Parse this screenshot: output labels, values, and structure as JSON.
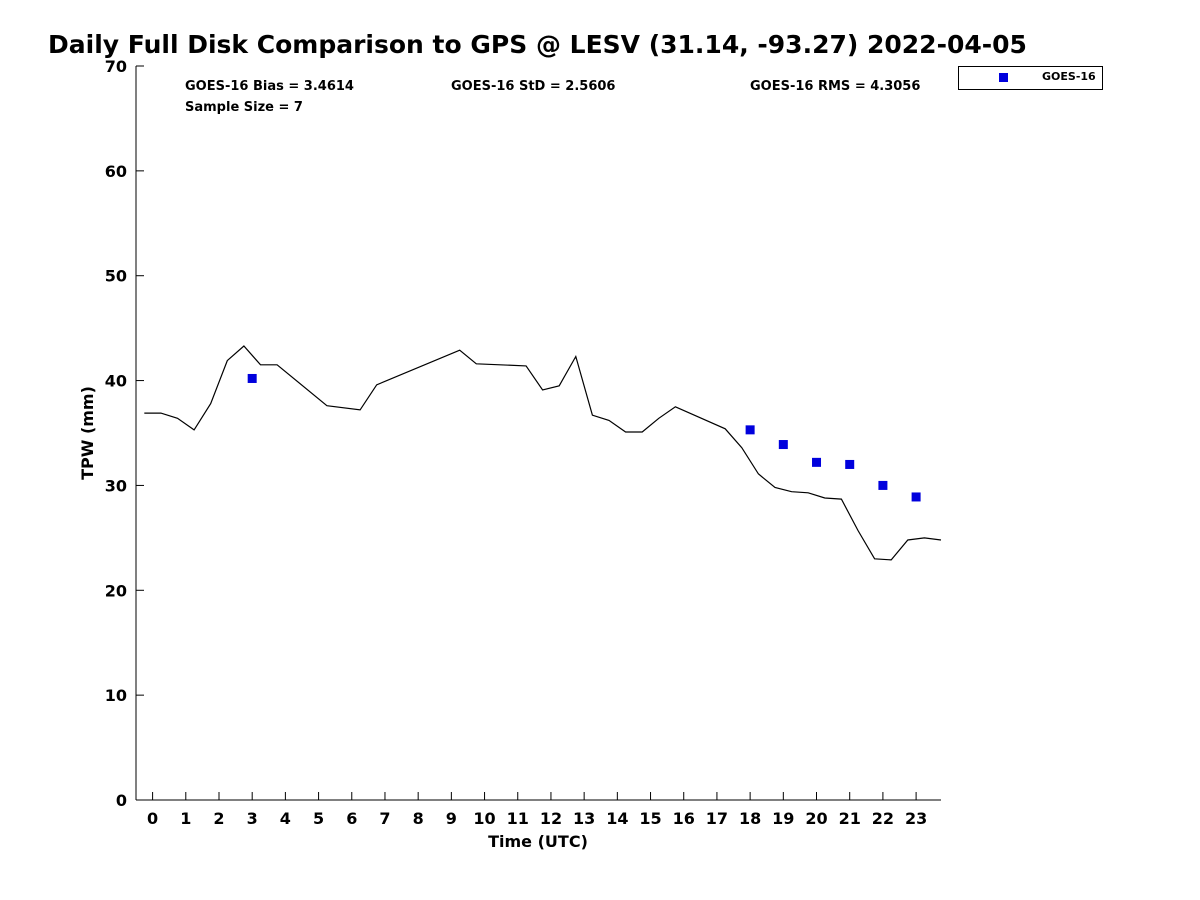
{
  "chart_data": {
    "type": "scatter",
    "title": "Daily Full Disk Comparison to GPS @ LESV (31.14, -93.27) 2022-04-05",
    "xlabel": "Time (UTC)",
    "ylabel": "TPW (mm)",
    "xlim": [
      -0.5,
      23.75
    ],
    "ylim": [
      0,
      70
    ],
    "x_ticks": [
      "0",
      "1",
      "2",
      "3",
      "4",
      "5",
      "6",
      "7",
      "8",
      "9",
      "10",
      "11",
      "12",
      "13",
      "14",
      "15",
      "16",
      "17",
      "18",
      "19",
      "20",
      "21",
      "22",
      "23"
    ],
    "y_ticks": [
      "0",
      "10",
      "20",
      "30",
      "40",
      "50",
      "60",
      "70"
    ],
    "grid": false,
    "legend_position": "top-right",
    "stats": [
      "GOES-16 Bias = 3.4614",
      "GOES-16 StD = 2.5606",
      "GOES-16 RMS = 4.3056",
      "Sample Size = 7"
    ],
    "series": [
      {
        "name": "GOES-16",
        "marker": "square",
        "color": "#0000dd",
        "x": [
          3,
          18,
          19,
          20,
          21,
          22,
          23
        ],
        "y": [
          40.2,
          35.3,
          33.9,
          32.2,
          32.0,
          30.0,
          28.9
        ]
      },
      {
        "line_color": "#000000",
        "x": [
          -0.25,
          0.25,
          0.75,
          1.25,
          1.75,
          2.25,
          2.75,
          3.25,
          3.75,
          5.25,
          6.25,
          6.75,
          9.25,
          9.75,
          11.25,
          11.75,
          12.25,
          12.75,
          13.25,
          13.75,
          14.25,
          14.75,
          15.25,
          15.75,
          17.25,
          17.75,
          18.25,
          18.75,
          19.25,
          19.75,
          20.25,
          20.75,
          21.25,
          21.75,
          22.25,
          22.75,
          23.25,
          23.75
        ],
        "y": [
          36.9,
          36.9,
          36.4,
          35.3,
          37.8,
          41.9,
          43.3,
          41.5,
          41.5,
          37.6,
          37.2,
          39.6,
          42.9,
          41.6,
          41.4,
          39.1,
          39.5,
          42.3,
          36.7,
          36.2,
          35.1,
          35.1,
          36.4,
          37.5,
          35.4,
          33.6,
          31.1,
          29.8,
          29.4,
          29.3,
          28.8,
          28.7,
          25.7,
          23.0,
          22.9,
          24.8,
          25.0,
          24.8
        ]
      }
    ]
  }
}
